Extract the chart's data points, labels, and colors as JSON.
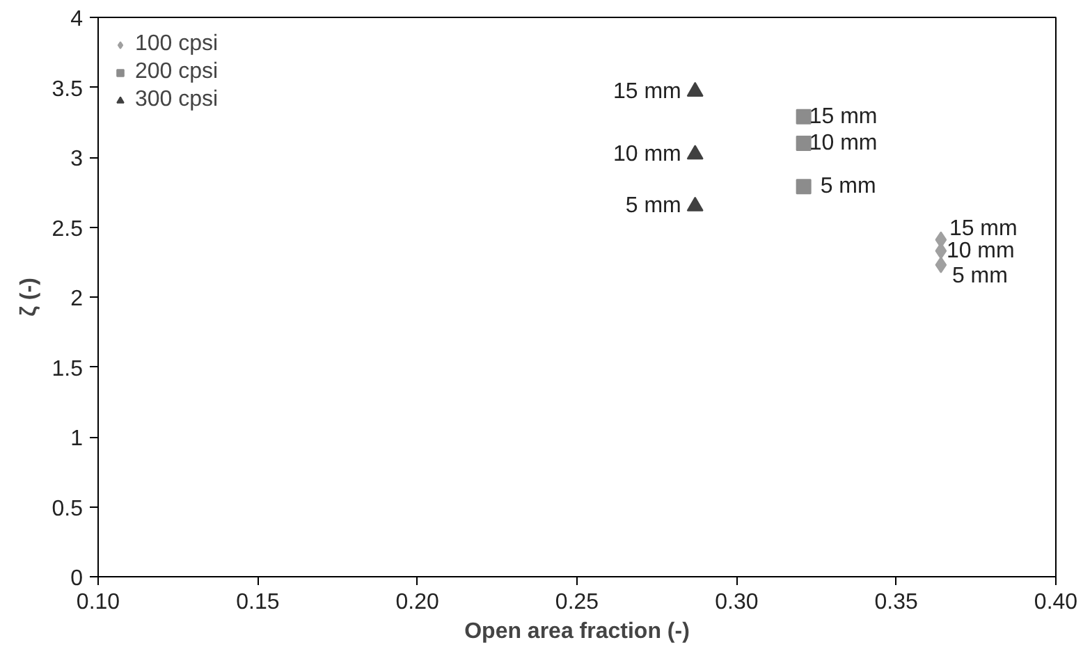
{
  "chart_data": {
    "type": "scatter",
    "xlabel": "Open area fraction (-)",
    "ylabel": "ζ (-)",
    "xlim": [
      0.1,
      0.4
    ],
    "xticks": [
      {
        "value": 0.1,
        "label": "0.10"
      },
      0.15,
      {
        "value": 0.2,
        "label": "0.20"
      },
      0.25,
      {
        "value": 0.3,
        "label": "0.30"
      },
      0.35,
      {
        "value": 0.4,
        "label": "0.40"
      }
    ],
    "ylim": [
      0,
      4
    ],
    "yticks": [
      0,
      0.5,
      1,
      1.5,
      2,
      2.5,
      3,
      3.5,
      4
    ],
    "grid": false,
    "legend": "top left",
    "series": [
      {
        "name": "100 cpsi",
        "color": "#a0a0a0",
        "marker": "diamond",
        "x": [
          0.364,
          0.364,
          0.364
        ],
        "values": [
          2.41,
          2.33,
          2.23
        ]
      },
      {
        "name": "200 cpsi",
        "color": "#8c8c8c",
        "marker": "square",
        "x": [
          0.321,
          0.321,
          0.321
        ],
        "values": [
          3.29,
          3.1,
          2.79
        ]
      },
      {
        "name": "300 cpsi",
        "color": "#404040",
        "marker": "triangle",
        "x": [
          0.287,
          0.287,
          0.287
        ],
        "values": [
          3.47,
          3.02,
          2.65
        ]
      }
    ],
    "annotations": [
      {
        "text": "15 mm",
        "x": 0.364,
        "y": 2.41
      },
      {
        "text": "10 mm",
        "x": 0.364,
        "y": 2.33
      },
      {
        "text": "5 mm",
        "x": 0.364,
        "y": 2.23
      },
      {
        "text": "15 mm",
        "x": 0.321,
        "y": 3.29
      },
      {
        "text": "10 mm",
        "x": 0.321,
        "y": 3.1
      },
      {
        "text": "5 mm",
        "x": 0.321,
        "y": 2.79
      },
      {
        "text": "15 mm",
        "x": 0.287,
        "y": 3.47
      },
      {
        "text": "10 mm",
        "x": 0.287,
        "y": 3.02
      },
      {
        "text": "5 mm",
        "x": 0.287,
        "y": 2.65
      }
    ]
  }
}
